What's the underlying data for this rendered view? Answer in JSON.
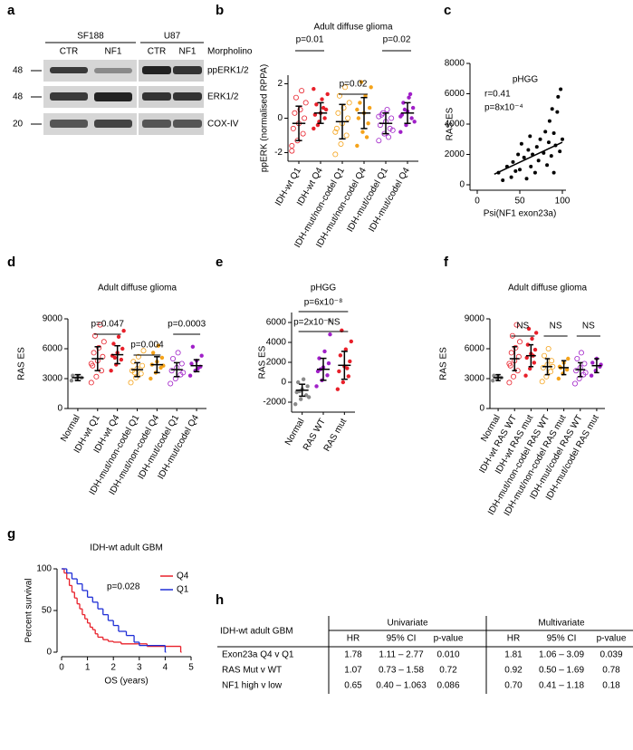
{
  "panel_letters": [
    "a",
    "b",
    "c",
    "d",
    "e",
    "f",
    "g",
    "h"
  ],
  "blot": {
    "cell_lines": [
      "SF188",
      "U87"
    ],
    "lanes": [
      "CTR",
      "NF1",
      "CTR",
      "NF1"
    ],
    "treatment": "Morpholino",
    "proteins": [
      "ppERK1/2",
      "ERK1/2",
      "COX-IV"
    ],
    "mw_markers": [
      "48",
      "48",
      "20"
    ]
  },
  "chart_data": [
    {
      "type": "dot",
      "title": "Adult diffuse glioma",
      "y_label": "ppERK (normalised RPPA)",
      "categories": [
        "IDH-wt Q1",
        "IDH-wt Q4",
        "IDH-mut/non-codel Q1",
        "IDH-mut/non-codel Q4",
        "IDH-mut/codel Q1",
        "IDH-mut/codel Q4"
      ],
      "colors": [
        "#e8202a",
        "#e8202a",
        "#f5a31a",
        "#f5a31a",
        "#a020c8",
        "#a020c8"
      ],
      "filled": [
        false,
        true,
        false,
        true,
        false,
        true
      ],
      "points": [
        [
          -1.9,
          -1.3,
          -0.9,
          -0.6,
          -0.3,
          0,
          0.3,
          0.5,
          0.9,
          1.2,
          1.6,
          -1.6
        ],
        [
          -0.6,
          -0.2,
          0,
          0.2,
          0.3,
          0.5,
          0.8,
          1.1,
          1.4,
          -0.4,
          0.6,
          1.7
        ],
        [
          -2.1,
          -1.5,
          -1.0,
          -0.6,
          -0.3,
          0,
          0.3,
          0.6,
          0.9,
          1.3,
          1.8,
          -0.8
        ],
        [
          -1.6,
          -0.8,
          -0.3,
          0,
          0.3,
          0.6,
          0.9,
          1.3,
          1.8,
          2.1,
          -1.1,
          0.5
        ],
        [
          -1.3,
          -0.9,
          -0.6,
          -0.4,
          -0.2,
          0,
          0.2,
          0.5,
          -0.7,
          0.3,
          -1.1,
          0.1
        ],
        [
          -0.8,
          -0.4,
          0,
          0.2,
          0.4,
          0.6,
          0.9,
          1.2,
          -0.2,
          0.5,
          1.4,
          0.1
        ]
      ],
      "mean": [
        -0.3,
        0.3,
        -0.2,
        0.3,
        -0.3,
        0.3
      ],
      "sd": [
        1.0,
        0.6,
        1.0,
        0.9,
        0.6,
        0.6
      ],
      "ylim": [
        -2.5,
        2.5
      ],
      "yticks": [
        -2,
        0,
        2
      ],
      "annotations": [
        "p=0.01",
        "p=0.02",
        "p=0.02"
      ]
    },
    {
      "type": "scatter",
      "title": "pHGG",
      "annotations": [
        "r=0.41",
        "p=8x10⁻⁴"
      ],
      "x_label": "Psi(NF1 exon23a)",
      "y_label": "RAS ES",
      "color": "#000000",
      "x": [
        25,
        30,
        35,
        40,
        42,
        45,
        48,
        50,
        52,
        55,
        58,
        60,
        62,
        63,
        65,
        68,
        70,
        72,
        74,
        78,
        80,
        82,
        84,
        85,
        87,
        88,
        90,
        92,
        94,
        95,
        97,
        100,
        98,
        90
      ],
      "y": [
        800,
        300,
        1200,
        500,
        1500,
        900,
        2000,
        1000,
        2700,
        1800,
        400,
        2300,
        3200,
        1200,
        2000,
        800,
        2500,
        1600,
        3000,
        2100,
        3500,
        1300,
        2800,
        4200,
        1900,
        5000,
        3400,
        2600,
        4800,
        5800,
        2200,
        3000,
        6300,
        800
      ],
      "fit": {
        "x": [
          20,
          100
        ],
        "y": [
          700,
          2800
        ]
      },
      "xlim": [
        0,
        100
      ],
      "xticks": [
        0,
        50,
        100
      ],
      "ylim": [
        0,
        8000
      ],
      "yticks": [
        0,
        2000,
        4000,
        6000,
        8000
      ]
    },
    {
      "type": "dot",
      "title": "Adult diffuse glioma",
      "y_label": "RAS ES",
      "categories": [
        "Normal",
        "IDH-wt Q1",
        "IDH-wt Q4",
        "IDH-mut/non-codel Q1",
        "IDH-mut/non-codel Q4",
        "IDH-mut/codel Q1",
        "IDH-mut/codel Q4"
      ],
      "colors": [
        "#8a8a8a",
        "#e8202a",
        "#e8202a",
        "#f5a31a",
        "#f5a31a",
        "#a020c8",
        "#a020c8"
      ],
      "filled": [
        true,
        false,
        true,
        false,
        true,
        false,
        true
      ],
      "points": [
        [
          2800,
          3000,
          3100,
          3300,
          3200
        ],
        [
          2600,
          3200,
          3800,
          4300,
          4800,
          5200,
          5600,
          6100,
          6700,
          7300,
          8400,
          4500
        ],
        [
          3800,
          4400,
          4900,
          5300,
          5600,
          6000,
          6500,
          7200,
          7800,
          5100
        ],
        [
          2600,
          3100,
          3500,
          3800,
          4000,
          4300,
          4700,
          5200,
          5800,
          3600
        ],
        [
          3000,
          3600,
          4100,
          4400,
          4700,
          5100,
          5600,
          6300,
          4300
        ],
        [
          2500,
          3000,
          3400,
          3800,
          4100,
          4500,
          5000,
          5600,
          3600
        ],
        [
          3300,
          3800,
          4200,
          4500,
          4800,
          5300,
          6200,
          4000
        ]
      ],
      "mean": [
        3100,
        5000,
        5400,
        3900,
        4400,
        3900,
        4300
      ],
      "sd": [
        300,
        1200,
        900,
        700,
        800,
        700,
        600
      ],
      "ylim": [
        0,
        9000
      ],
      "yticks": [
        0,
        3000,
        6000,
        9000
      ],
      "annotations": [
        "p=0.047",
        "p=0.004",
        "p=0.0003"
      ]
    },
    {
      "type": "dot",
      "title": "pHGG",
      "y_label": "RAS ES",
      "categories": [
        "Normal",
        "RAS WT",
        "RAS mut"
      ],
      "colors": [
        "#8a8a8a",
        "#a020c8",
        "#e8202a"
      ],
      "filled": [
        true,
        true,
        true
      ],
      "points": [
        [
          -2200,
          -1700,
          -1300,
          -1000,
          -700,
          -400,
          0,
          300,
          -1500,
          -900
        ],
        [
          -400,
          200,
          700,
          1100,
          1500,
          1900,
          2400,
          3100,
          4800,
          1300
        ],
        [
          -700,
          0,
          600,
          1100,
          1600,
          2100,
          2700,
          3300,
          4100,
          5200,
          1400
        ]
      ],
      "mean": [
        -800,
        1300,
        1700
      ],
      "sd": [
        600,
        1100,
        1400
      ],
      "ylim": [
        -3000,
        7000
      ],
      "yticks": [
        -2000,
        0,
        2000,
        4000,
        6000
      ],
      "annotations": [
        "p=6x10⁻⁸",
        "p=2x10⁻⁶",
        "NS"
      ]
    },
    {
      "type": "dot",
      "title": "Adult diffuse glioma",
      "y_label": "RAS ES",
      "categories": [
        "Normal",
        "IDH-wt RAS WT",
        "IDH-wt RAS mut",
        "IDH-mut/non-codel RAS WT",
        "IDH-mut/non-codel RAS mut",
        "IDH-mut/codel RAS WT",
        "IDH-mut/codel RAS mut"
      ],
      "colors": [
        "#8a8a8a",
        "#e8202a",
        "#e8202a",
        "#f5a31a",
        "#f5a31a",
        "#a020c8",
        "#a020c8"
      ],
      "filled": [
        true,
        false,
        true,
        false,
        true,
        false,
        true
      ],
      "points": [
        [
          2800,
          3000,
          3100,
          3300,
          3200
        ],
        [
          2600,
          3200,
          3800,
          4300,
          4800,
          5200,
          5600,
          6100,
          6700,
          7300,
          8400,
          4500
        ],
        [
          3300,
          4000,
          4600,
          5100,
          5500,
          5900,
          6400,
          7000,
          7600,
          8000,
          5300
        ],
        [
          2700,
          3200,
          3700,
          4100,
          4400,
          4800,
          5300,
          6000,
          4200
        ],
        [
          3000,
          3500,
          3900,
          4200,
          4600,
          5000,
          4100
        ],
        [
          2500,
          3000,
          3400,
          3800,
          4100,
          4500,
          5000,
          5600,
          3600
        ],
        [
          3300,
          3800,
          4200,
          4600,
          5000,
          4400
        ]
      ],
      "mean": [
        3100,
        5000,
        5300,
        4200,
        4100,
        3900,
        4300
      ],
      "sd": [
        300,
        1200,
        1100,
        800,
        700,
        700,
        700
      ],
      "ylim": [
        0,
        9000
      ],
      "yticks": [
        0,
        3000,
        6000,
        9000
      ],
      "annotations": [
        "NS",
        "NS",
        "NS"
      ]
    },
    {
      "type": "step",
      "title": "IDH-wt adult GBM",
      "x_label": "OS (years)",
      "y_label": "Percent survival",
      "series": [
        {
          "name": "Q4",
          "color": "#e8202a",
          "x": [
            0,
            0.1,
            0.2,
            0.3,
            0.4,
            0.5,
            0.6,
            0.7,
            0.8,
            0.9,
            1.0,
            1.1,
            1.2,
            1.3,
            1.4,
            1.6,
            1.8,
            2.0,
            2.3,
            2.9,
            3.3,
            4.6
          ],
          "values": [
            100,
            95,
            88,
            80,
            72,
            65,
            58,
            52,
            45,
            40,
            35,
            30,
            27,
            22,
            18,
            15,
            13,
            12,
            10,
            10,
            7,
            0
          ]
        },
        {
          "name": "Q1",
          "color": "#1f2fd6",
          "x": [
            0,
            0.2,
            0.4,
            0.6,
            0.8,
            1.0,
            1.2,
            1.4,
            1.6,
            1.8,
            2.0,
            2.2,
            2.5,
            2.8,
            3.0,
            4.0
          ],
          "values": [
            100,
            95,
            88,
            82,
            74,
            66,
            60,
            52,
            45,
            38,
            32,
            25,
            20,
            12,
            8,
            0
          ]
        }
      ],
      "xlim": [
        0,
        5
      ],
      "xticks": [
        0,
        1,
        2,
        3,
        4,
        5
      ],
      "ylim": [
        0,
        100
      ],
      "yticks": [
        0,
        50,
        100
      ],
      "legend": "top-right",
      "annotations": [
        "p=0.028"
      ]
    }
  ],
  "table": {
    "corner": "IDH-wt adult GBM",
    "groups": [
      "Univariate",
      "Multivariate"
    ],
    "columns": [
      "HR",
      "95% CI",
      "p-value",
      "HR",
      "95% CI",
      "p-value"
    ],
    "rows": [
      [
        "Exon23a Q4 v Q1",
        "1.78",
        "1.11 – 2.77",
        "0.010",
        "1.81",
        "1.06 – 3.09",
        "0.039"
      ],
      [
        "RAS Mut v WT",
        "1.07",
        "0.73 – 1.58",
        "0.72",
        "0.92",
        "0.50 – 1.69",
        "0.78"
      ],
      [
        "NF1 high v low",
        "0.65",
        "0.40 – 1.063",
        "0.086",
        "0.70",
        "0.41 – 1.18",
        "0.18"
      ]
    ]
  }
}
